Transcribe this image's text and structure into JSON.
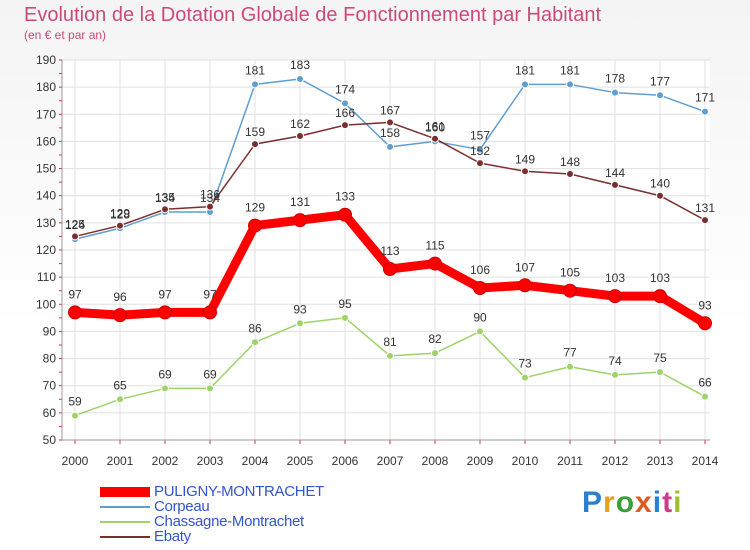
{
  "header": {
    "title": "Evolution de la Dotation Globale de Fonctionnement par Habitant",
    "subtitle": "(en € et par an)"
  },
  "logo": {
    "text": "Proxiti"
  },
  "chart_data": {
    "type": "line",
    "x": [
      2000,
      2001,
      2002,
      2003,
      2004,
      2005,
      2006,
      2007,
      2008,
      2009,
      2010,
      2011,
      2012,
      2013,
      2014
    ],
    "ylim": [
      50,
      190
    ],
    "yticks": [
      50,
      60,
      70,
      80,
      90,
      100,
      110,
      120,
      130,
      140,
      150,
      160,
      170,
      180,
      190
    ],
    "grid": true,
    "legend_position": "bottom-left",
    "series": [
      {
        "name": "PULIGNY-MONTRACHET",
        "color": "#ff0000",
        "values": [
          97,
          96,
          97,
          97,
          129,
          131,
          133,
          113,
          115,
          106,
          107,
          105,
          103,
          103,
          93
        ]
      },
      {
        "name": "Corpeau",
        "color": "#5f9ecf",
        "values": [
          124,
          128,
          134,
          134,
          181,
          183,
          174,
          158,
          160,
          157,
          181,
          181,
          178,
          177,
          171
        ]
      },
      {
        "name": "Chassagne-Montrachet",
        "color": "#9ed36a",
        "values": [
          59,
          65,
          69,
          69,
          86,
          93,
          95,
          81,
          82,
          90,
          73,
          77,
          74,
          75,
          66
        ]
      },
      {
        "name": "Ebaty",
        "color": "#7a2e2e",
        "values": [
          125,
          129,
          135,
          136,
          159,
          162,
          166,
          167,
          161,
          152,
          149,
          148,
          144,
          140,
          131
        ]
      }
    ]
  }
}
